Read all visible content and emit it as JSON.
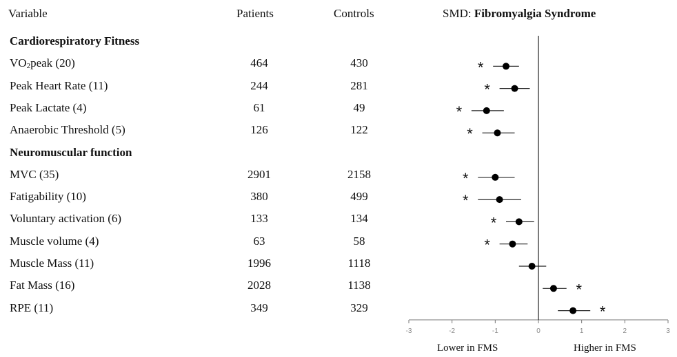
{
  "header": {
    "variable": "Variable",
    "patients": "Patients",
    "controls": "Controls",
    "smd_prefix": "SMD:",
    "smd_condition": "Fibromyalgia Syndrome"
  },
  "rows": [
    {
      "type": "section",
      "label": "Cardiorespiratory Fitness"
    },
    {
      "type": "item",
      "label": "VO2peak (20)",
      "patients": "464",
      "controls": "430"
    },
    {
      "type": "item",
      "label": "Peak Heart Rate (11)",
      "patients": "244",
      "controls": "281"
    },
    {
      "type": "item",
      "label": "Peak Lactate (4)",
      "patients": "61",
      "controls": "49"
    },
    {
      "type": "item",
      "label": "Anaerobic Threshold (5)",
      "patients": "126",
      "controls": "122"
    },
    {
      "type": "section",
      "label": "Neuromuscular function"
    },
    {
      "type": "item",
      "label": "MVC (35)",
      "patients": "2901",
      "controls": "2158"
    },
    {
      "type": "item",
      "label": "Fatigability  (10)",
      "patients": "380",
      "controls": "499"
    },
    {
      "type": "item",
      "label": "Voluntary activation (6)",
      "patients": "133",
      "controls": "134"
    },
    {
      "type": "item",
      "label": "Muscle volume (4)",
      "patients": "63",
      "controls": "58"
    },
    {
      "type": "item",
      "label": "Muscle Mass (11)",
      "patients": "1996",
      "controls": "1118"
    },
    {
      "type": "item",
      "label": "Fat Mass (16)",
      "patients": "2028",
      "controls": "1138"
    },
    {
      "type": "item",
      "label": "RPE (11)",
      "patients": "349",
      "controls": "329"
    }
  ],
  "chart_data": {
    "type": "scatter",
    "subtype": "forest-plot",
    "title": "SMD: Fibromyalgia Syndrome",
    "xlim": [
      -3,
      3
    ],
    "xticks": [
      "-3",
      "-2",
      "-1",
      "0",
      "1",
      "2",
      "3"
    ],
    "reference_line": 0,
    "left_caption": "Lower in FMS",
    "right_caption": "Higher in FMS",
    "significance_marker": "*",
    "points": [
      {
        "label": "VO2peak (20)",
        "smd": -0.75,
        "ci": [
          -1.05,
          -0.45
        ],
        "significant": true
      },
      {
        "label": "Peak Heart Rate (11)",
        "smd": -0.55,
        "ci": [
          -0.9,
          -0.2
        ],
        "significant": true
      },
      {
        "label": "Peak Lactate (4)",
        "smd": -1.2,
        "ci": [
          -1.55,
          -0.8
        ],
        "significant": true
      },
      {
        "label": "Anaerobic Threshold (5)",
        "smd": -0.95,
        "ci": [
          -1.3,
          -0.55
        ],
        "significant": true
      },
      {
        "label": "MVC (35)",
        "smd": -1.0,
        "ci": [
          -1.4,
          -0.55
        ],
        "significant": true
      },
      {
        "label": "Fatigability  (10)",
        "smd": -0.9,
        "ci": [
          -1.4,
          -0.4
        ],
        "significant": true
      },
      {
        "label": "Voluntary activation (6)",
        "smd": -0.45,
        "ci": [
          -0.75,
          -0.1
        ],
        "significant": true
      },
      {
        "label": "Muscle volume (4)",
        "smd": -0.6,
        "ci": [
          -0.9,
          -0.25
        ],
        "significant": true
      },
      {
        "label": "Muscle Mass (11)",
        "smd": -0.15,
        "ci": [
          -0.45,
          0.18
        ],
        "significant": false
      },
      {
        "label": "Fat Mass (16)",
        "smd": 0.35,
        "ci": [
          0.1,
          0.65
        ],
        "significant": true
      },
      {
        "label": "RPE (11)",
        "smd": 0.8,
        "ci": [
          0.45,
          1.2
        ],
        "significant": true
      }
    ]
  }
}
